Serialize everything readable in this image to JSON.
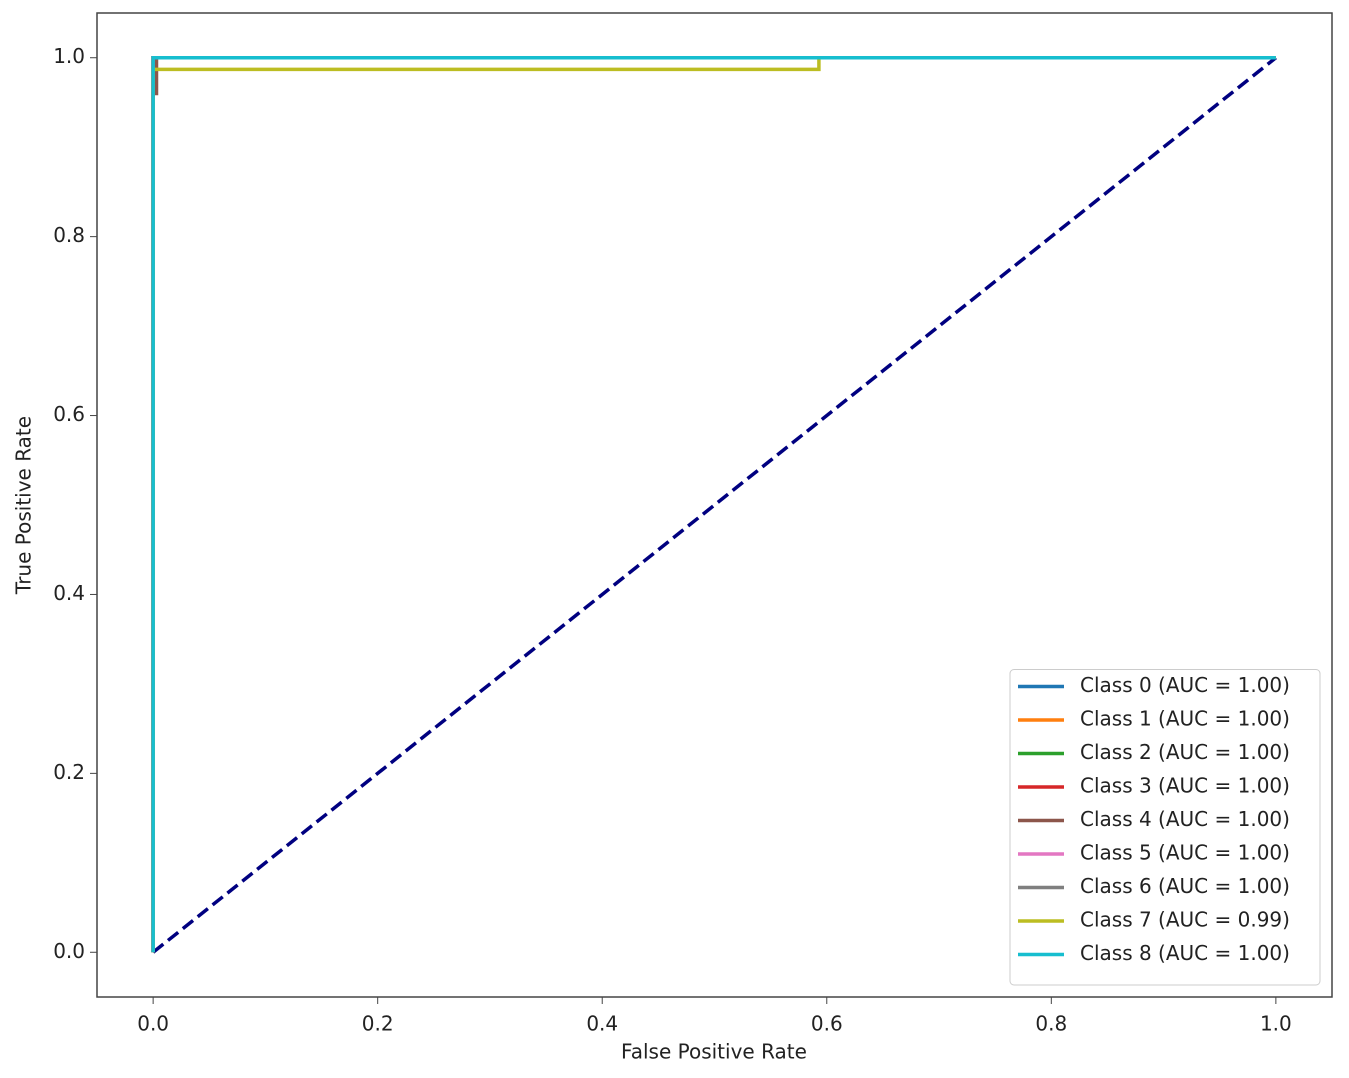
{
  "chart_data": {
    "type": "line",
    "xlabel": "False Positive Rate",
    "ylabel": "True Positive Rate",
    "xlim": [
      -0.05,
      1.05
    ],
    "ylim": [
      -0.05,
      1.05
    ],
    "xticks": [
      {
        "value": 0,
        "label": "0.0"
      },
      0.2,
      0.4,
      0.6,
      0.8,
      {
        "value": 1,
        "label": "1.0"
      }
    ],
    "yticks": [
      {
        "value": 0,
        "label": "0.0"
      },
      0.2,
      0.4,
      0.6,
      0.8,
      {
        "value": 1,
        "label": "1.0"
      }
    ],
    "legend": "lower right",
    "series": [
      {
        "name": "Class 0 (AUC = 1.00)",
        "color": "#1f77b4",
        "x": [
          0,
          0,
          1
        ],
        "values": [
          0,
          1,
          1
        ]
      },
      {
        "name": "Class 1 (AUC = 1.00)",
        "color": "#ff7f0e",
        "x": [
          0,
          0,
          1
        ],
        "values": [
          0,
          1,
          1
        ]
      },
      {
        "name": "Class 2 (AUC = 1.00)",
        "color": "#2ca02c",
        "x": [
          0,
          0,
          1
        ],
        "values": [
          0,
          1,
          1
        ]
      },
      {
        "name": "Class 3 (AUC = 1.00)",
        "color": "#d62728",
        "x": [
          0,
          0,
          1
        ],
        "values": [
          0,
          1,
          1
        ]
      },
      {
        "name": "Class 4 (AUC = 1.00)",
        "color": "#8c564b",
        "x": [
          0,
          0,
          0.003,
          0.003,
          1
        ],
        "values": [
          0,
          0.96,
          0.96,
          1,
          1
        ]
      },
      {
        "name": "Class 5 (AUC = 1.00)",
        "color": "#e377c2",
        "x": [
          0,
          0,
          1
        ],
        "values": [
          0,
          1,
          1
        ]
      },
      {
        "name": "Class 6 (AUC = 1.00)",
        "color": "#7f7f7f",
        "x": [
          0,
          0,
          1
        ],
        "values": [
          0,
          1,
          1
        ]
      },
      {
        "name": "Class 7 (AUC = 0.99)",
        "color": "#bcbd22",
        "x": [
          0,
          0,
          0.593,
          0.593,
          1
        ],
        "values": [
          0,
          0.987,
          0.987,
          1,
          1
        ]
      },
      {
        "name": "Class 8 (AUC = 1.00)",
        "color": "#17becf",
        "x": [
          0,
          0,
          1
        ],
        "values": [
          0,
          1,
          1
        ]
      }
    ],
    "reference_line": {
      "color": "#000080",
      "dashed": true,
      "x": [
        0,
        1
      ],
      "values": [
        0,
        1
      ]
    }
  }
}
